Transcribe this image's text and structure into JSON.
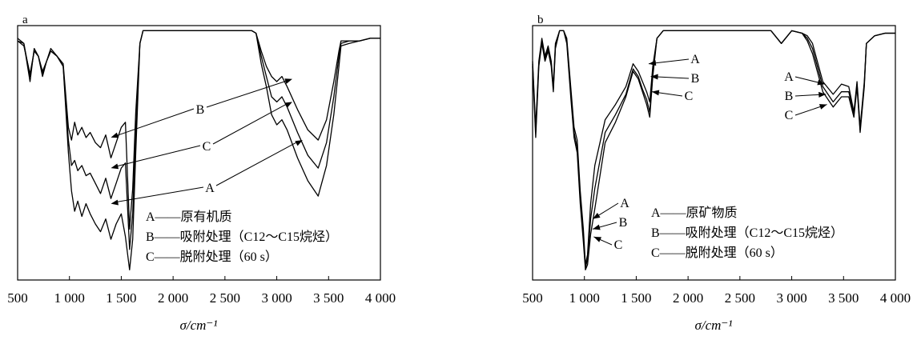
{
  "chart_data": [
    {
      "panel": "a",
      "type": "line",
      "xlabel": "σ/cm⁻¹",
      "xlim": [
        500,
        4000
      ],
      "xticks": [
        500,
        1000,
        1500,
        2000,
        2500,
        3000,
        3500,
        4000
      ],
      "xtick_labels": [
        "500",
        "1 000",
        "1 500",
        "2 000",
        "2 500",
        "3 000",
        "3 500",
        "4 000"
      ],
      "ylim": [
        0,
        100
      ],
      "y_axis_shown": false,
      "grid": false,
      "legend": [
        "A——原有机质",
        "B——吸附处理（C12～C15烷烃）",
        "C——脱附处理（60 s）"
      ],
      "legend_position": "bottom-center",
      "curve_labels": [
        "B",
        "C",
        "A"
      ],
      "series": [
        {
          "name": "A",
          "x": [
            500,
            560,
            620,
            660,
            700,
            740,
            780,
            820,
            880,
            940,
            990,
            1020,
            1050,
            1080,
            1120,
            1160,
            1200,
            1250,
            1300,
            1350,
            1400,
            1450,
            1500,
            1540,
            1580,
            1610,
            1640,
            1680,
            1710,
            1740,
            1760,
            1780,
            1800,
            1900,
            2000,
            2200,
            2400,
            2600,
            2700,
            2760,
            2800,
            2850,
            2900,
            2950,
            3000,
            3050,
            3100,
            3200,
            3300,
            3400,
            3480,
            3550,
            3600,
            3620,
            3700,
            3800,
            3900,
            4000
          ],
          "y": [
            95,
            93,
            78,
            91,
            88,
            80,
            86,
            91,
            88,
            84,
            50,
            35,
            27,
            31,
            25,
            30,
            26,
            22,
            19,
            24,
            16,
            22,
            26,
            17,
            4,
            16,
            50,
            93,
            98,
            98,
            98,
            98,
            98,
            98,
            98,
            98,
            98,
            98,
            98,
            98,
            97,
            85,
            76,
            65,
            61,
            63,
            59,
            48,
            39,
            33,
            45,
            65,
            84,
            92,
            93,
            94,
            95,
            95
          ]
        },
        {
          "name": "B",
          "x": [
            500,
            560,
            620,
            660,
            700,
            740,
            780,
            820,
            880,
            940,
            990,
            1020,
            1050,
            1080,
            1120,
            1160,
            1200,
            1250,
            1300,
            1350,
            1400,
            1450,
            1500,
            1540,
            1580,
            1610,
            1640,
            1680,
            1710,
            1740,
            1760,
            1780,
            1800,
            1900,
            2000,
            2200,
            2400,
            2600,
            2700,
            2760,
            2800,
            2850,
            2900,
            2950,
            3000,
            3050,
            3100,
            3200,
            3300,
            3400,
            3480,
            3550,
            3600,
            3620,
            3700,
            3800,
            3900,
            4000
          ],
          "y": [
            94,
            92,
            81,
            90,
            88,
            82,
            86,
            90,
            88,
            85,
            60,
            55,
            62,
            57,
            60,
            56,
            58,
            54,
            52,
            57,
            48,
            54,
            60,
            62,
            20,
            36,
            66,
            93,
            98,
            98,
            98,
            98,
            98,
            98,
            98,
            98,
            98,
            98,
            98,
            98,
            97,
            90,
            84,
            80,
            78,
            80,
            76,
            67,
            59,
            55,
            63,
            78,
            90,
            94,
            94,
            94,
            95,
            95
          ]
        },
        {
          "name": "C",
          "x": [
            500,
            560,
            620,
            660,
            700,
            740,
            780,
            820,
            880,
            940,
            990,
            1020,
            1050,
            1080,
            1120,
            1160,
            1200,
            1250,
            1300,
            1350,
            1400,
            1450,
            1500,
            1540,
            1580,
            1610,
            1640,
            1680,
            1710,
            1740,
            1760,
            1780,
            1800,
            1900,
            2000,
            2200,
            2400,
            2600,
            2700,
            2760,
            2800,
            2850,
            2900,
            2950,
            3000,
            3050,
            3100,
            3200,
            3300,
            3400,
            3480,
            3550,
            3600,
            3620,
            3700,
            3800,
            3900,
            4000
          ],
          "y": [
            94,
            93,
            80,
            90,
            88,
            81,
            86,
            90,
            88,
            84,
            55,
            45,
            47,
            43,
            45,
            41,
            42,
            38,
            34,
            40,
            32,
            38,
            44,
            46,
            12,
            26,
            58,
            93,
            98,
            98,
            98,
            98,
            98,
            98,
            98,
            98,
            98,
            98,
            98,
            98,
            97,
            88,
            80,
            72,
            70,
            72,
            68,
            58,
            49,
            44,
            54,
            72,
            88,
            93,
            94,
            94,
            95,
            95
          ]
        }
      ]
    },
    {
      "panel": "b",
      "type": "line",
      "xlabel": "σ/cm⁻¹",
      "xlim": [
        500,
        4000
      ],
      "xticks": [
        500,
        1000,
        1500,
        2000,
        2500,
        3000,
        3500,
        4000
      ],
      "xtick_labels": [
        "500",
        "1 000",
        "1 500",
        "2 000",
        "2 500",
        "3 000",
        "3 500",
        "4 000"
      ],
      "ylim": [
        0,
        100
      ],
      "y_axis_shown": false,
      "grid": false,
      "legend": [
        "A——原矿物质",
        "B——吸附处理（C12～C15烷烃）",
        "C——脱附处理（60 s）"
      ],
      "legend_position": "bottom-right",
      "curve_labels": [
        "A",
        "B",
        "C",
        "A",
        "B",
        "C",
        "A",
        "B",
        "C"
      ],
      "series": [
        {
          "name": "A",
          "x": [
            500,
            530,
            560,
            590,
            620,
            650,
            680,
            700,
            720,
            760,
            800,
            830,
            870,
            900,
            930,
            960,
            990,
            1010,
            1030,
            1060,
            1100,
            1200,
            1300,
            1400,
            1470,
            1520,
            1560,
            1600,
            1630,
            1660,
            1700,
            1760,
            1800,
            1900,
            2000,
            2200,
            2400,
            2600,
            2800,
            2900,
            3000,
            3100,
            3150,
            3200,
            3300,
            3400,
            3480,
            3550,
            3600,
            3630,
            3660,
            3700,
            3720,
            3800,
            3900,
            4000
          ],
          "y": [
            86,
            60,
            86,
            95,
            88,
            92,
            86,
            76,
            93,
            98,
            98,
            95,
            75,
            60,
            55,
            35,
            20,
            6,
            10,
            30,
            45,
            63,
            69,
            76,
            85,
            82,
            78,
            74,
            70,
            84,
            95,
            98,
            98,
            98,
            98,
            98,
            98,
            98,
            98,
            93,
            98,
            97,
            96,
            93,
            78,
            73,
            77,
            76,
            66,
            78,
            60,
            78,
            93,
            96,
            97,
            97
          ]
        },
        {
          "name": "B",
          "x": [
            500,
            530,
            560,
            590,
            620,
            650,
            680,
            700,
            720,
            760,
            800,
            830,
            870,
            900,
            930,
            960,
            990,
            1010,
            1030,
            1060,
            1100,
            1200,
            1300,
            1400,
            1470,
            1520,
            1560,
            1600,
            1630,
            1660,
            1700,
            1760,
            1800,
            1900,
            2000,
            2200,
            2400,
            2600,
            2800,
            2900,
            3000,
            3100,
            3150,
            3200,
            3300,
            3400,
            3480,
            3550,
            3600,
            3630,
            3660,
            3700,
            3720,
            3800,
            3900,
            4000
          ],
          "y": [
            85,
            58,
            85,
            94,
            87,
            91,
            85,
            75,
            92,
            98,
            98,
            94,
            73,
            58,
            52,
            32,
            17,
            5,
            8,
            24,
            36,
            58,
            65,
            73,
            83,
            80,
            75,
            71,
            66,
            82,
            95,
            98,
            98,
            98,
            98,
            98,
            98,
            98,
            98,
            93,
            98,
            97,
            95,
            91,
            76,
            70,
            74,
            74,
            65,
            77,
            59,
            77,
            93,
            96,
            97,
            97
          ]
        },
        {
          "name": "C",
          "x": [
            500,
            530,
            560,
            590,
            620,
            650,
            680,
            700,
            720,
            760,
            800,
            830,
            870,
            900,
            930,
            960,
            990,
            1010,
            1030,
            1060,
            1100,
            1200,
            1300,
            1400,
            1470,
            1520,
            1560,
            1600,
            1630,
            1660,
            1700,
            1760,
            1800,
            1900,
            2000,
            2200,
            2400,
            2600,
            2800,
            2900,
            3000,
            3100,
            3150,
            3200,
            3300,
            3400,
            3480,
            3550,
            3600,
            3630,
            3660,
            3700,
            3720,
            3800,
            3900,
            4000
          ],
          "y": [
            84,
            56,
            84,
            93,
            86,
            90,
            84,
            74,
            91,
            98,
            98,
            93,
            71,
            56,
            50,
            30,
            15,
            4,
            6,
            18,
            28,
            54,
            62,
            72,
            82,
            79,
            74,
            69,
            64,
            80,
            95,
            98,
            98,
            98,
            98,
            98,
            98,
            98,
            98,
            93,
            98,
            97,
            94,
            89,
            74,
            68,
            72,
            72,
            64,
            76,
            58,
            76,
            93,
            96,
            97,
            97
          ]
        }
      ]
    }
  ]
}
